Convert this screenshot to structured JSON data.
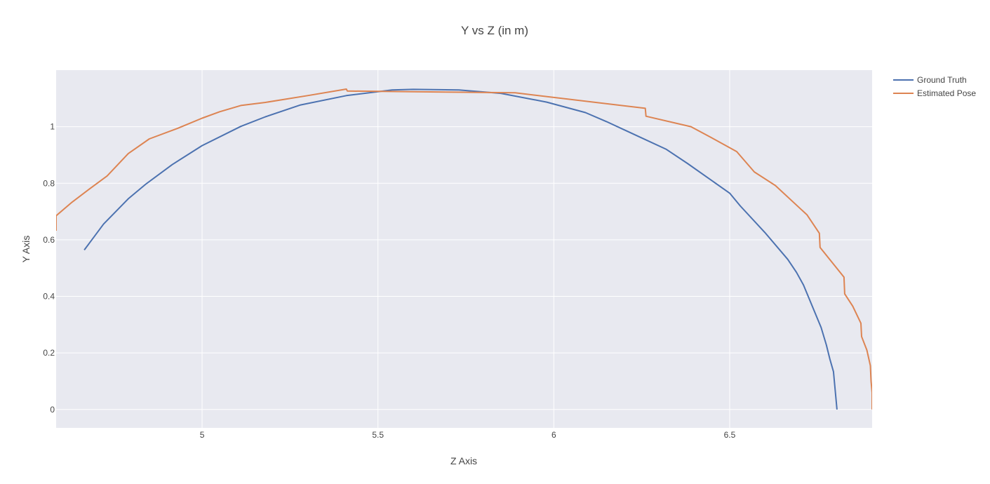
{
  "chart_data": {
    "type": "line",
    "title": "Y vs Z (in m)",
    "xlabel": "Z Axis",
    "ylabel": "Y Axis",
    "xlim": [
      4.585,
      6.905
    ],
    "ylim": [
      -0.065,
      1.2
    ],
    "xticks": [
      5,
      5.5,
      6,
      6.5
    ],
    "xtick_labels": [
      "5",
      "5.5",
      "6",
      "6.5"
    ],
    "yticks": [
      0,
      0.2,
      0.4,
      0.6,
      0.8,
      1
    ],
    "ytick_labels": [
      "0",
      "0.2",
      "0.4",
      "0.6",
      "0.8",
      "1"
    ],
    "grid": true,
    "legend_position": "top-right",
    "series": [
      {
        "name": "Ground Truth",
        "color": "#4c72b0",
        "points": [
          [
            4.665,
            0.564
          ],
          [
            4.72,
            0.656
          ],
          [
            4.79,
            0.745
          ],
          [
            4.84,
            0.797
          ],
          [
            4.915,
            0.866
          ],
          [
            5.0,
            0.933
          ],
          [
            5.11,
            1.001
          ],
          [
            5.18,
            1.035
          ],
          [
            5.28,
            1.077
          ],
          [
            5.41,
            1.11
          ],
          [
            5.54,
            1.13
          ],
          [
            5.6,
            1.132
          ],
          [
            5.73,
            1.13
          ],
          [
            5.85,
            1.118
          ],
          [
            5.98,
            1.087
          ],
          [
            6.09,
            1.05
          ],
          [
            6.15,
            1.018
          ],
          [
            6.24,
            0.966
          ],
          [
            6.32,
            0.92
          ],
          [
            6.38,
            0.87
          ],
          [
            6.5,
            0.765
          ],
          [
            6.53,
            0.72
          ],
          [
            6.6,
            0.626
          ],
          [
            6.665,
            0.531
          ],
          [
            6.69,
            0.485
          ],
          [
            6.71,
            0.44
          ],
          [
            6.76,
            0.29
          ],
          [
            6.775,
            0.228
          ],
          [
            6.785,
            0.178
          ],
          [
            6.795,
            0.134
          ],
          [
            6.805,
            0.0
          ]
        ]
      },
      {
        "name": "Estimated Pose",
        "color": "#dd8452",
        "points": [
          [
            4.585,
            0.632
          ],
          [
            4.585,
            0.685
          ],
          [
            4.63,
            0.733
          ],
          [
            4.68,
            0.78
          ],
          [
            4.73,
            0.826
          ],
          [
            4.79,
            0.905
          ],
          [
            4.85,
            0.957
          ],
          [
            4.93,
            0.994
          ],
          [
            5.0,
            1.03
          ],
          [
            5.05,
            1.053
          ],
          [
            5.11,
            1.075
          ],
          [
            5.18,
            1.086
          ],
          [
            5.3,
            1.11
          ],
          [
            5.41,
            1.133
          ],
          [
            5.413,
            1.126
          ],
          [
            5.89,
            1.12
          ],
          [
            6.26,
            1.065
          ],
          [
            6.262,
            1.037
          ],
          [
            6.39,
            1.0
          ],
          [
            6.45,
            0.96
          ],
          [
            6.52,
            0.912
          ],
          [
            6.57,
            0.84
          ],
          [
            6.63,
            0.792
          ],
          [
            6.72,
            0.688
          ],
          [
            6.755,
            0.623
          ],
          [
            6.757,
            0.573
          ],
          [
            6.825,
            0.468
          ],
          [
            6.827,
            0.409
          ],
          [
            6.85,
            0.365
          ],
          [
            6.873,
            0.305
          ],
          [
            6.875,
            0.258
          ],
          [
            6.89,
            0.21
          ],
          [
            6.9,
            0.155
          ],
          [
            6.902,
            0.1
          ],
          [
            6.905,
            0.06
          ],
          [
            6.905,
            0.0
          ]
        ]
      }
    ]
  }
}
